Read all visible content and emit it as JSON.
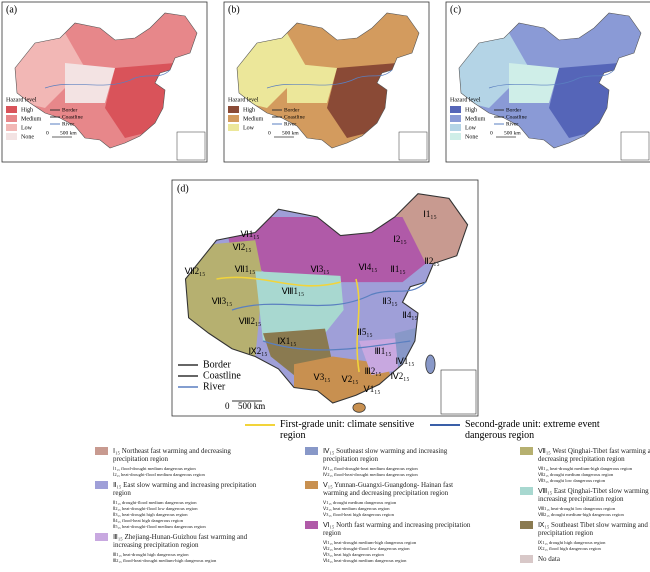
{
  "panels": [
    {
      "label": "(a)",
      "legend_title": "Hazard level",
      "levels": [
        "High",
        "Medium",
        "Low",
        "None"
      ],
      "level_colors": [
        "#d9535a",
        "#e7878a",
        "#f2b7b5",
        "#f3e3e3"
      ],
      "lines": [
        "Border",
        "Coastline",
        "River"
      ],
      "scale": [
        "0",
        "500 km"
      ]
    },
    {
      "label": "(b)",
      "legend_title": "Hazard level",
      "levels": [
        "High",
        "Medium",
        "Low"
      ],
      "level_colors": [
        "#8a4a36",
        "#d39b5e",
        "#ece79a"
      ],
      "lines": [
        "Border",
        "Coastline",
        "River"
      ],
      "scale": [
        "0",
        "500 km"
      ]
    },
    {
      "label": "(c)",
      "legend_title": "Hazard level",
      "levels": [
        "High",
        "Medium",
        "Low",
        "None"
      ],
      "level_colors": [
        "#5565b8",
        "#8a9ad6",
        "#b4d4e6",
        "#cfeee8"
      ],
      "lines": [
        "Border",
        "Coastline",
        "River"
      ],
      "scale": [
        "0",
        "500 km"
      ]
    }
  ],
  "main": {
    "label": "(d)",
    "lines": [
      "Border",
      "Coastline",
      "River"
    ],
    "scale": [
      "0",
      "500 km"
    ],
    "region_labels": [
      "Ⅰ1₁₅",
      "Ⅰ2₁₅",
      "Ⅵ1₁₅",
      "Ⅵ2₁₅",
      "Ⅶ2₁₅",
      "Ⅶ1₁₅",
      "Ⅵ3₁₅",
      "Ⅵ4₁₅",
      "Ⅱ1₁₅",
      "Ⅱ2₁₅",
      "Ⅷ1₁₅",
      "Ⅶ3₁₅",
      "Ⅱ3₁₅",
      "Ⅱ5₁₅",
      "Ⅱ4₁₅",
      "Ⅷ2₁₅",
      "Ⅸ1₁₅",
      "Ⅸ2₁₅",
      "Ⅲ1₁₅",
      "Ⅳ1₁₅",
      "Ⅲ2₁₅",
      "Ⅳ2₁₅",
      "Ⅴ3₁₅",
      "Ⅴ2₁₅",
      "Ⅴ1₁₅"
    ],
    "first_grade": "First-grade unit: climate sensitive region",
    "second_grade": "Second-grade unit: extreme event dangerous region"
  },
  "legend": [
    [
      {
        "color": "#c89a90",
        "heading": "Ⅰ₁₅ Northeast fast warming and decreasing precipitation region",
        "items": [
          "Ⅰ1₁₅ flood-drought medium dangerous region",
          "Ⅰ2₁₅ heat-drought-flood medium dangerous region"
        ]
      },
      {
        "color": "#9f9fd8",
        "heading": "Ⅱ₁₅ East slow warming and increasing precipitation region",
        "items": [
          "Ⅱ1₁₅ drought-flood medium dangerous region",
          "Ⅱ2₁₅ heat-drought-flood low dangerous region",
          "Ⅱ3₁₅ heat-drought high dangerous region",
          "Ⅱ4₁₅ flood-heat high dangerous region",
          "Ⅱ5₁₅ heat-drought-flood medium dangerous region"
        ]
      },
      {
        "color": "#c8a8e0",
        "heading": "Ⅲ₁₅ Zhejiang-Hunan-Guizhou fast warming and increasing precipitation region",
        "items": [
          "Ⅲ1₁₅ heat-drought high dangerous region",
          "Ⅲ2₁₅ flood-heat-drought medium-high dangerous region"
        ]
      }
    ],
    [
      {
        "color": "#8898c8",
        "heading": "Ⅳ₁₅ Southeast slow warming and increasing precipitation region",
        "items": [
          "Ⅳ1₁₅ flood-drought-heat medium dangerous region",
          "Ⅳ2₁₅ flood-heat-drought medium dangerous region"
        ]
      },
      {
        "color": "#c89050",
        "heading": "Ⅴ₁₅ Yunnan-Guangxi-Guangdong- Hainan fast warming and decreasing precipitation region",
        "items": [
          "Ⅴ1₁₅ drought medium dangerous region",
          "Ⅴ2₁₅ heat medium dangerous region",
          "Ⅴ3₁₅ flood-heat high dangerous region"
        ]
      },
      {
        "color": "#b05aa8",
        "heading": "Ⅵ₁₅ North fast warming and increasing precipitation region",
        "items": [
          "Ⅵ1₁₅ heat-drought medium-high dangerous region",
          "Ⅵ2₁₅ heat-drought-flood low dangerous region",
          "Ⅵ3₁₅ heat high dangerous region",
          "Ⅵ4₁₅ heat-drought medium dangerous region"
        ]
      }
    ],
    [
      {
        "color": "#b6b070",
        "heading": "Ⅶ₁₅ West Qinghai-Tibet fast warming and decreasing precipitation region",
        "items": [
          "Ⅶ1₁₅ heat-drought medium-high dangerous region",
          "Ⅶ2₁₅ drought medium dangerous region",
          "Ⅶ3₁₅ drought low dangerous region"
        ]
      },
      {
        "color": "#a8d8d0",
        "heading": "Ⅷ₁₅ East Qinghai-Tibet slow warming and increasing precipitation region",
        "items": [
          "Ⅷ1₁₅ heat-drought low dangerous region",
          "Ⅷ2₁₅ drought medium-high dangerous region"
        ]
      },
      {
        "color": "#8a7a50",
        "heading": "Ⅸ₁₅ Southeast Tibet slow warming and increasing precipitation region",
        "items": [
          "Ⅸ1₁₅ drought high dangerous region",
          "Ⅸ2₁₅ flood high dangerous region"
        ]
      },
      {
        "color": "#d8c8c8",
        "heading": "No data",
        "items": []
      }
    ]
  ]
}
